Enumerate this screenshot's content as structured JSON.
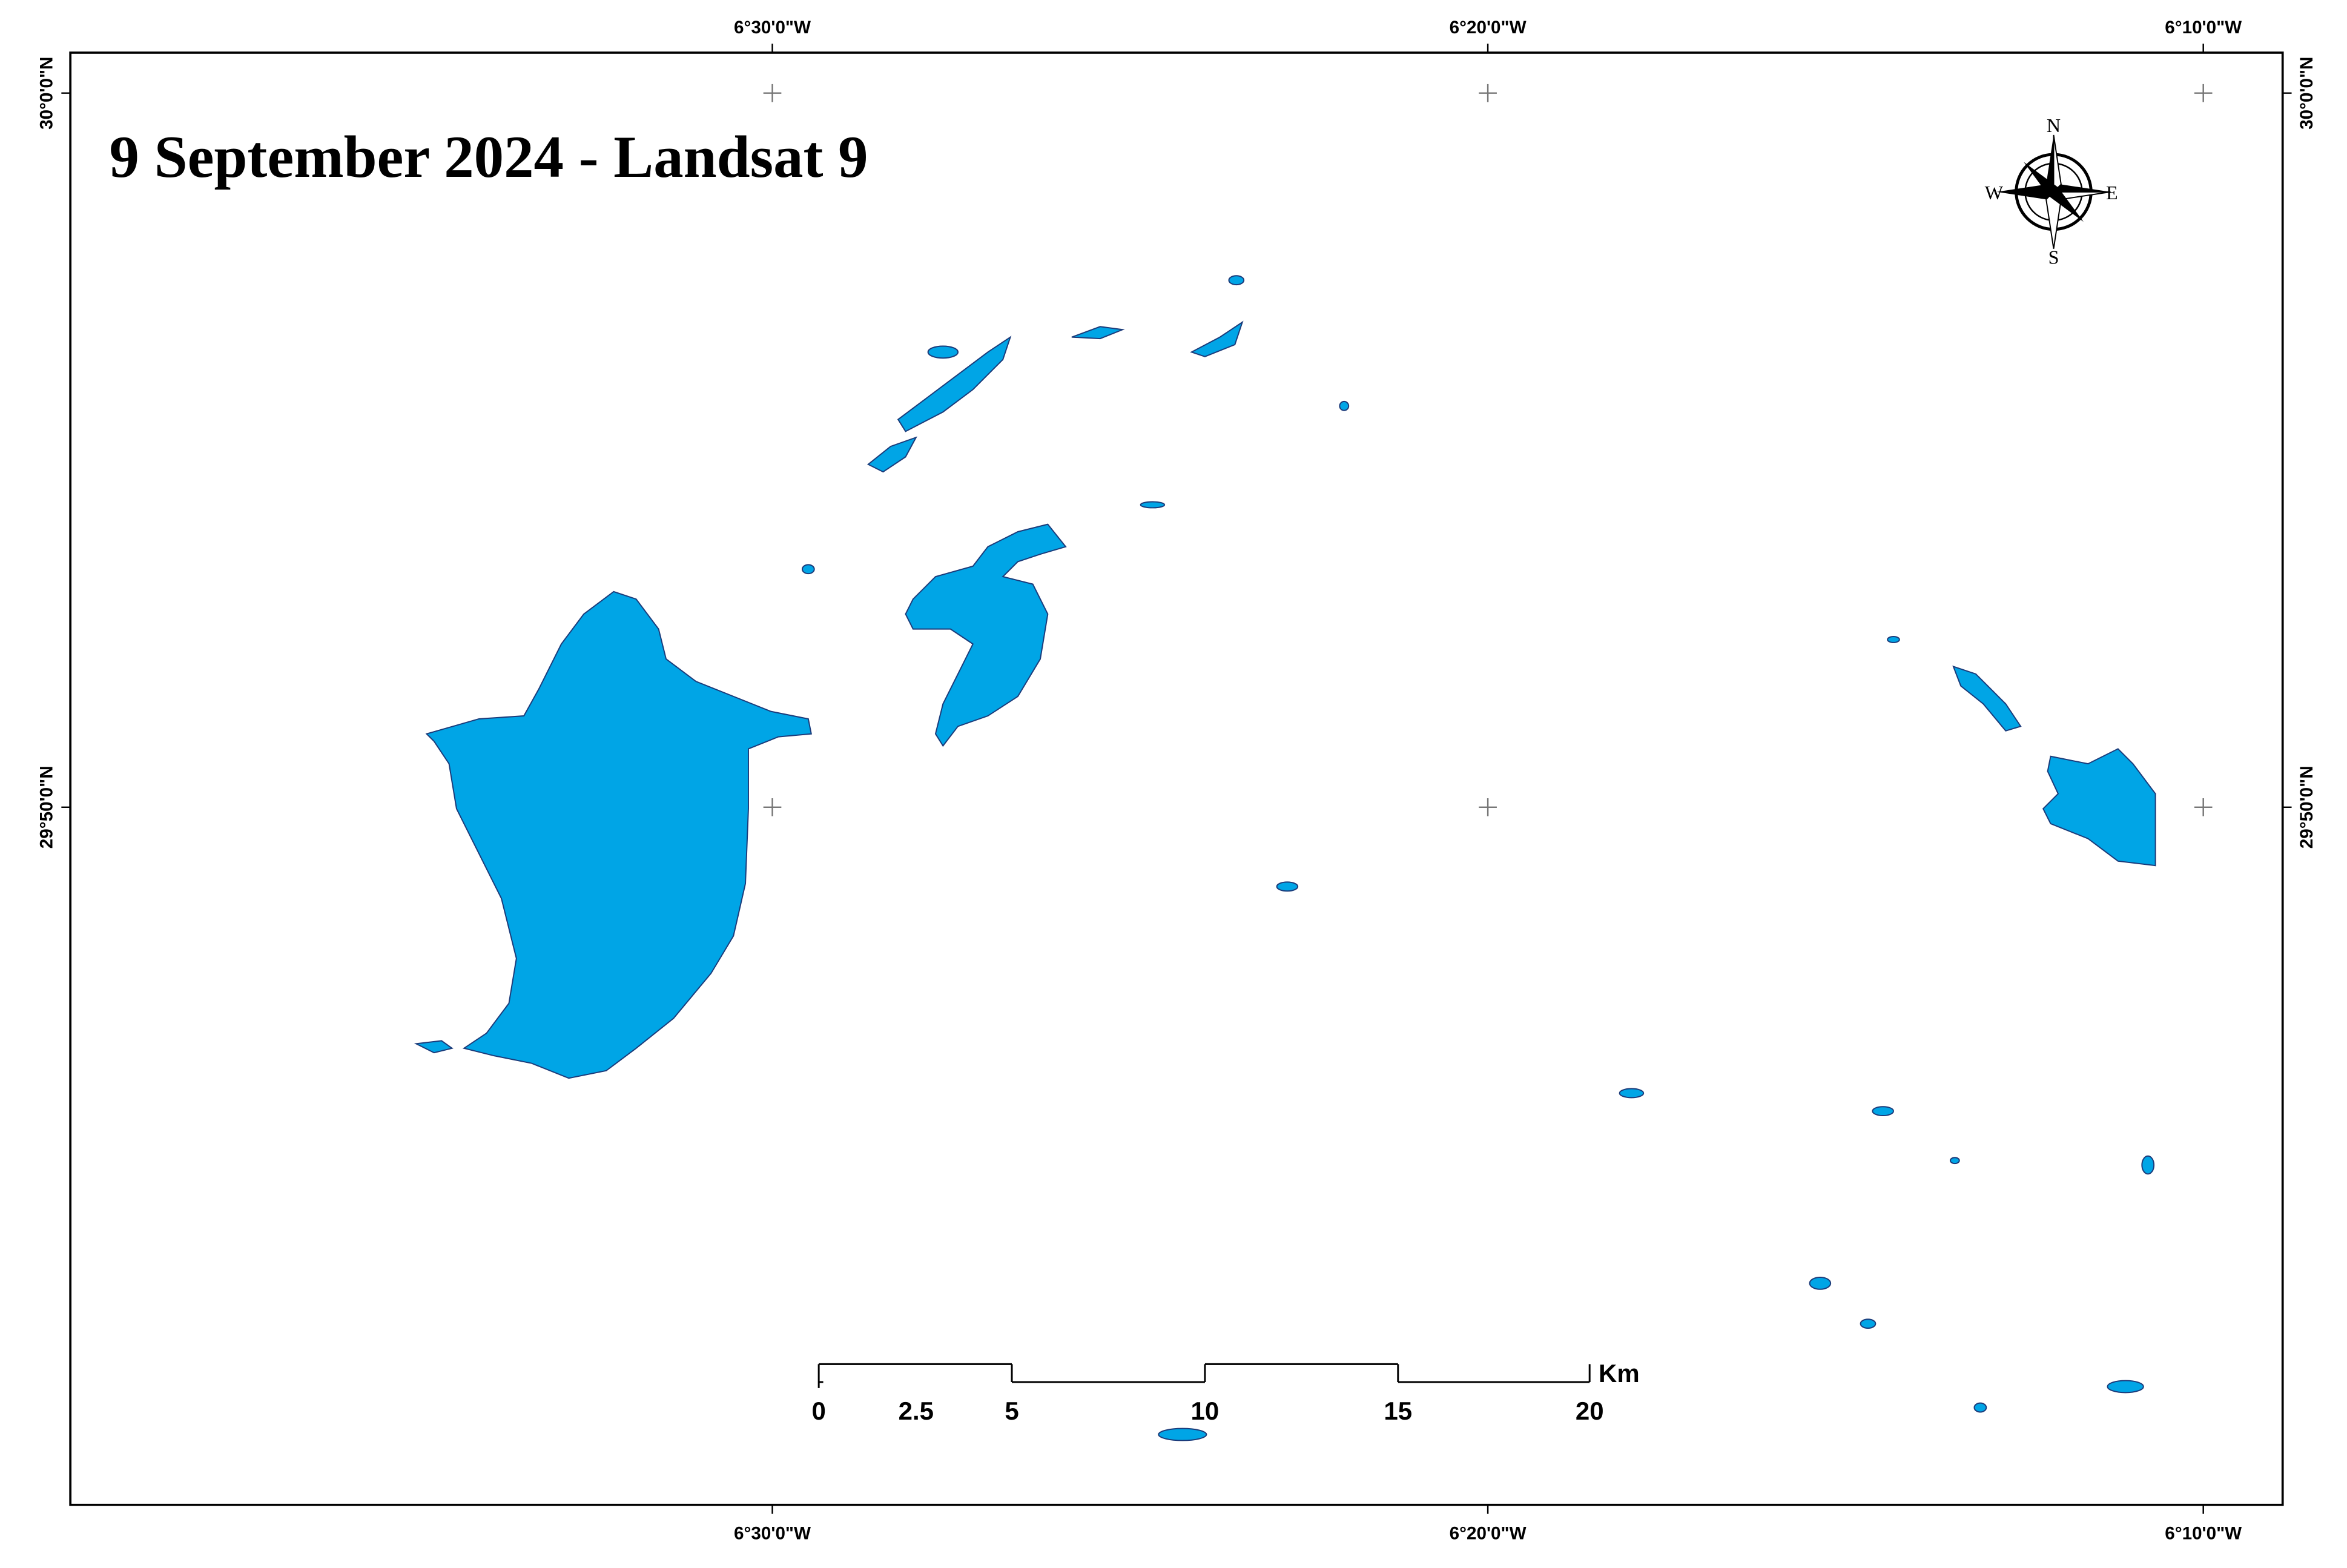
{
  "title": "9 September 2024 - Landsat 9",
  "top_labels": [
    "6°30'0\"W",
    "6°20'0\"W",
    "6°10'0\"W"
  ],
  "bottom_labels": [
    "6°30'0\"W",
    "6°20'0\"W",
    "6°10'0\"W"
  ],
  "left_labels": [
    "30°0'0\"N",
    "29°50'0\"N"
  ],
  "right_labels": [
    "30°0'0\"N",
    "29°50'0\"N"
  ],
  "compass": {
    "north": "N",
    "south": "S",
    "east": "E",
    "west": "W"
  },
  "scale_bar": {
    "labels": [
      "0",
      "2.5",
      "5",
      "10",
      "15",
      "20"
    ],
    "unit": "Km"
  }
}
